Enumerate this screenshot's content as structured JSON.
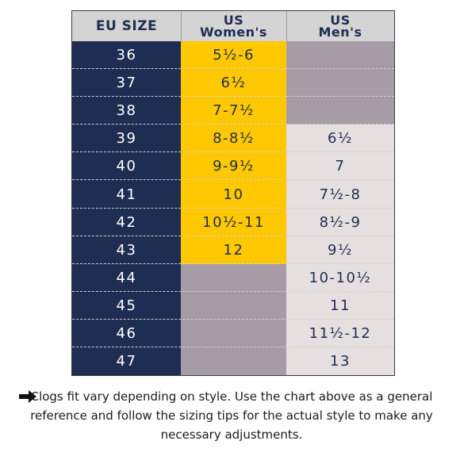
{
  "headers": {
    "eu": "EU SIZE",
    "women_line1": "US",
    "women_line2": "Women's",
    "men_line1": "US",
    "men_line2": "Men's"
  },
  "rows": [
    {
      "eu": "36",
      "women": "5½-6",
      "men": ""
    },
    {
      "eu": "37",
      "women": "6½",
      "men": ""
    },
    {
      "eu": "38",
      "women": "7-7½",
      "men": ""
    },
    {
      "eu": "39",
      "women": "8-8½",
      "men": "6½"
    },
    {
      "eu": "40",
      "women": "9-9½",
      "men": "7"
    },
    {
      "eu": "41",
      "women": "10",
      "men": "7½-8"
    },
    {
      "eu": "42",
      "women": "10½-11",
      "men": "8½-9"
    },
    {
      "eu": "43",
      "women": "12",
      "men": "9½"
    },
    {
      "eu": "44",
      "women": "",
      "men": "10-10½"
    },
    {
      "eu": "45",
      "women": "",
      "men": "11"
    },
    {
      "eu": "46",
      "women": "",
      "men": "11½-12"
    },
    {
      "eu": "47",
      "women": "",
      "men": "13"
    }
  ],
  "note": {
    "icon": "arrow-right-icon",
    "text": "Clogs fit vary depending on style. Use the chart above as a general reference and follow the sizing tips for the actual style to make any necessary adjustments."
  },
  "colors": {
    "navy": "#1e2d52",
    "yellow": "#ffc800",
    "empty": "#a69ca6",
    "men_fill": "#e6dfe0",
    "header_bg": "#d4d4d4"
  }
}
